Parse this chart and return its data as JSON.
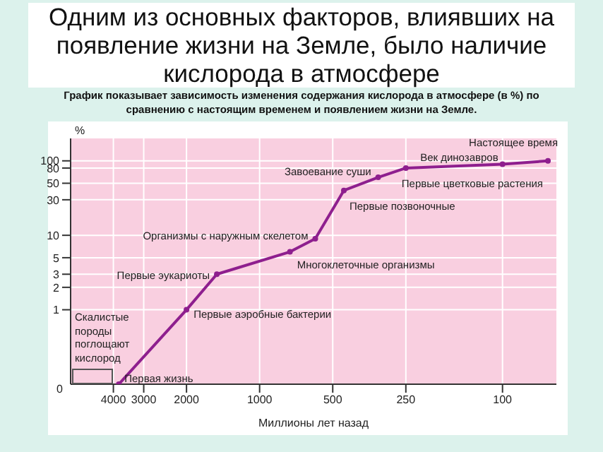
{
  "chart_data": {
    "type": "line",
    "title": "Одним из основных факторов, влиявших на появление жизни на Земле, было наличие кислорода в атмосфере",
    "subtitle": "График показывает зависимость изменения содержания кислорода в атмосфере (в %) по сравнению с настоящим временем и появлением жизни на Земле.",
    "xlabel": "Миллионы лет назад",
    "ylabel": "%",
    "x": [
      3800,
      2000,
      1500,
      750,
      590,
      450,
      325,
      250,
      100,
      65
    ],
    "series": [
      {
        "color": "#8e1f8e",
        "values": [
          0.1,
          1,
          3,
          6,
          9,
          40,
          60,
          80,
          90,
          100
        ]
      }
    ],
    "log": "xy",
    "xlim": [
      6000,
      60
    ],
    "xticks": [
      4000,
      3000,
      2000,
      1000,
      500,
      250,
      100
    ],
    "ylim": [
      0.1,
      200
    ],
    "yticks": [
      1,
      2,
      3,
      5,
      10,
      30,
      50,
      80,
      100
    ],
    "grid": true,
    "marker": "circle",
    "line_style": "solid",
    "annotations": [
      "0",
      "Скалистые породы поглощают кислород",
      {
        "text": "Первая жизнь",
        "x": 3800,
        "y": 0.1
      },
      {
        "text": "Первые аэробные бактерии",
        "x": 2000,
        "y": 1
      },
      {
        "text": "Первые эукариоты",
        "x": 1500,
        "y": 3
      },
      {
        "text": "Многоклеточные организмы",
        "x": 750,
        "y": 6
      },
      {
        "text": "Организмы с наружным скелетом",
        "x": 590,
        "y": 9
      },
      {
        "text": "Первые позвоночные",
        "x": 450,
        "y": 40
      },
      {
        "text": "Завоевание суши",
        "x": 325,
        "y": 60
      },
      {
        "text": "Первые цветковые растения",
        "x": 250,
        "y": 80
      },
      {
        "text": "Век динозавров",
        "x": 100,
        "y": 90
      },
      {
        "text": "Настоящее время",
        "x": 65,
        "y": 100
      }
    ]
  }
}
